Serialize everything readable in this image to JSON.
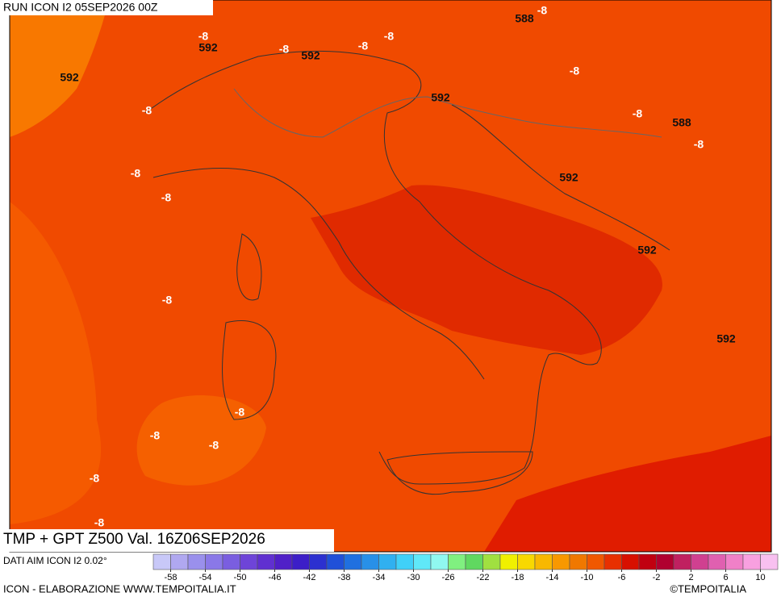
{
  "header": {
    "title": "RUN ICON I2 05SEP2026 00Z"
  },
  "map": {
    "labels": [
      "588",
      "-8",
      "-8",
      "592",
      "-8",
      "592",
      "-8",
      "-8",
      "592",
      "-8",
      "592",
      "-8",
      "-8",
      "588",
      "-8",
      "-8",
      "592",
      "-8",
      "592",
      "-8",
      "592",
      "-8",
      "-8",
      "-8",
      "-8",
      "-8"
    ]
  },
  "footer": {
    "title": "TMP + GPT Z500 Val. 16Z06SEP2026",
    "source": "DATI AIM ICON I2 0.02°",
    "credit": "ICON - ELABORAZIONE WWW.TEMPOITALIA.IT",
    "brand": "©TEMPOITALIA"
  },
  "colorbar": {
    "ticks": [
      -58,
      -54,
      -50,
      -46,
      -42,
      -38,
      -34,
      -30,
      -26,
      -22,
      -18,
      -14,
      -10,
      -6,
      -2,
      2,
      6,
      10
    ],
    "colors": [
      "#c8c8f8",
      "#b0a8f0",
      "#9a90ec",
      "#8a78e8",
      "#7a5ee0",
      "#6e44d8",
      "#6030d0",
      "#5020c8",
      "#3c1ec8",
      "#2c30d0",
      "#2050d8",
      "#2070e0",
      "#2890e8",
      "#30b0f0",
      "#40d0f8",
      "#60e8f8",
      "#90f8f0",
      "#80f080",
      "#60d860",
      "#a0e040",
      "#f0f000",
      "#f8d800",
      "#f8b800",
      "#f89800",
      "#f07800",
      "#f05800",
      "#e83000",
      "#d81000",
      "#c00010",
      "#b00030",
      "#c02060",
      "#d04090",
      "#e060b0",
      "#f080c8",
      "#f8a0e0",
      "#f8c0f0"
    ]
  }
}
